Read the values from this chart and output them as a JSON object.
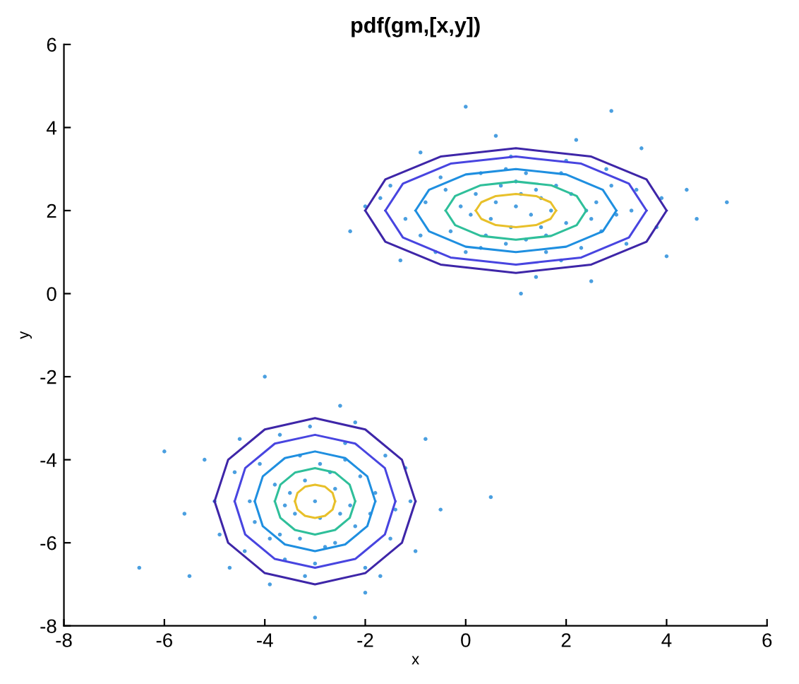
{
  "chart_data": {
    "type": "scatter",
    "title": "pdf(gm,[x,y])",
    "xlabel": "x",
    "ylabel": "y",
    "xlim": [
      -8,
      6
    ],
    "xticks": [
      -8,
      -6,
      -4,
      -2,
      0,
      2,
      4,
      6
    ],
    "ylim": [
      -8,
      6
    ],
    "yticks": [
      -8,
      -6,
      -4,
      -2,
      0,
      2,
      4,
      6
    ],
    "grid": false,
    "legend": false,
    "series": [
      {
        "color": "#4a9fe0",
        "marker": "circle",
        "x": [
          1.0,
          0.5,
          1.5,
          2.0,
          0.2,
          1.8,
          -0.3,
          2.6,
          0.8,
          1.2,
          -0.8,
          3.0,
          1.6,
          0.3,
          2.3,
          -1.2,
          3.4,
          0.9,
          1.9,
          -0.5,
          2.8,
          0.0,
          3.8,
          -1.5,
          4.4,
          5.2,
          2.9,
          0.0,
          -1.3,
          1.4,
          2.2,
          -2.0,
          4.0,
          0.6,
          -0.9,
          3.5,
          1.1,
          -2.3,
          4.6,
          2.5,
          1.3,
          0.7,
          1.7,
          2.1,
          0.4,
          -0.1,
          2.7,
          1.0,
          3.2,
          -0.6,
          0.9,
          1.4,
          0.1,
          2.4,
          1.9,
          0.6,
          1.2,
          -0.4,
          2.9,
          1.6,
          0.3,
          3.3,
          -0.9,
          2.0,
          1.1,
          0.8,
          2.5,
          1.5,
          -1.7,
          3.9,
          -3.0,
          -2.6,
          -3.4,
          -2.2,
          -3.8,
          -2.8,
          -3.3,
          -1.8,
          -4.2,
          -2.4,
          -3.6,
          -1.5,
          -4.6,
          -2.0,
          -3.1,
          -4.9,
          -1.2,
          -3.9,
          -2.5,
          -5.2,
          -1.0,
          -4.0,
          0.5,
          -6.0,
          -3.0,
          -6.5,
          -5.5,
          -0.8,
          -2.9,
          -3.5,
          -2.3,
          -3.7,
          -2.7,
          -4.4,
          -1.6,
          -3.2,
          -4.5,
          -0.5,
          -2.0,
          -5.0,
          -3.2,
          -2.5,
          -3.6,
          -2.9,
          -2.1,
          -3.9,
          -2.6,
          -4.1,
          -1.9,
          -3.3,
          -4.3,
          -2.4,
          -1.4,
          -3.0,
          -4.7,
          -1.7,
          -3.7,
          -2.2,
          -5.6,
          -1.1
        ],
        "values": [
          2.1,
          1.8,
          2.3,
          1.7,
          2.4,
          2.6,
          1.5,
          2.2,
          1.2,
          2.9,
          2.2,
          1.9,
          1.4,
          2.9,
          1.1,
          1.8,
          2.5,
          3.3,
          0.8,
          2.8,
          3.0,
          1.0,
          1.6,
          2.6,
          2.5,
          2.2,
          4.4,
          4.5,
          0.8,
          0.4,
          3.7,
          2.1,
          0.9,
          3.8,
          3.4,
          3.5,
          0.0,
          1.5,
          1.8,
          0.3,
          1.9,
          2.6,
          2.0,
          2.4,
          1.4,
          2.1,
          1.5,
          2.7,
          1.2,
          1.0,
          1.6,
          2.5,
          1.9,
          2.0,
          2.9,
          2.2,
          1.3,
          2.5,
          2.6,
          1.0,
          1.1,
          2.0,
          1.4,
          3.2,
          2.4,
          3.0,
          1.8,
          1.6,
          2.3,
          2.3,
          -5.0,
          -4.7,
          -5.3,
          -5.6,
          -4.6,
          -6.1,
          -3.9,
          -4.8,
          -5.5,
          -3.6,
          -6.4,
          -5.9,
          -4.3,
          -6.6,
          -3.2,
          -5.8,
          -4.2,
          -7.0,
          -2.7,
          -4.0,
          -6.2,
          -2.0,
          -4.9,
          -3.8,
          -7.8,
          -6.6,
          -6.8,
          -3.5,
          -5.4,
          -4.8,
          -5.1,
          -5.8,
          -4.3,
          -6.2,
          -3.9,
          -6.8,
          -3.5,
          -5.2,
          -7.2,
          -5.0,
          -4.5,
          -5.3,
          -5.1,
          -4.1,
          -4.4,
          -5.9,
          -6.0,
          -4.1,
          -5.3,
          -5.9,
          -5.0,
          -4.0,
          -5.2,
          -6.5,
          -6.6,
          -6.8,
          -3.4,
          -3.1,
          -5.3,
          -5.0
        ]
      },
      {
        "type": "line",
        "color": "#3e26a8",
        "marker": "none",
        "line_style": "solid",
        "x": [
          -2,
          -1.6,
          -0.5,
          1,
          2.5,
          3.6,
          4
        ],
        "values": [
          2,
          2.75,
          3.3,
          3.5,
          3.3,
          2.75,
          2
        ]
      },
      {
        "type": "line",
        "color": "#3e26a8",
        "marker": "none",
        "line_style": "solid",
        "x": [
          -2,
          -1.6,
          -0.5,
          1,
          2.5,
          3.6,
          4
        ],
        "values": [
          2,
          1.25,
          0.7,
          0.5,
          0.7,
          1.25,
          2
        ]
      },
      {
        "type": "line",
        "color": "#4845e0",
        "marker": "none",
        "line_style": "solid",
        "x": [
          -1.6,
          -1.25,
          -0.3,
          1,
          2.3,
          3.25,
          3.6
        ],
        "values": [
          2,
          2.65,
          3.13,
          3.3,
          3.13,
          2.65,
          2
        ]
      },
      {
        "type": "line",
        "color": "#4845e0",
        "marker": "none",
        "line_style": "solid",
        "x": [
          -1.6,
          -1.25,
          -0.3,
          1,
          2.3,
          3.25,
          3.6
        ],
        "values": [
          2,
          1.35,
          0.87,
          0.7,
          0.87,
          1.35,
          2
        ]
      },
      {
        "type": "line",
        "color": "#1f8fe0",
        "marker": "none",
        "line_style": "solid",
        "x": [
          -1,
          -0.73,
          0,
          1,
          2,
          2.73,
          3
        ],
        "values": [
          2,
          2.5,
          2.87,
          3,
          2.87,
          2.5,
          2
        ]
      },
      {
        "type": "line",
        "color": "#1f8fe0",
        "marker": "none",
        "line_style": "solid",
        "x": [
          -1,
          -0.73,
          0,
          1,
          2,
          2.73,
          3
        ],
        "values": [
          2,
          1.5,
          1.13,
          1,
          1.13,
          1.5,
          2
        ]
      },
      {
        "type": "line",
        "color": "#2fbf9a",
        "marker": "none",
        "line_style": "solid",
        "x": [
          -0.4,
          -0.21,
          0.3,
          1,
          1.7,
          2.21,
          2.4
        ],
        "values": [
          2,
          2.35,
          2.61,
          2.7,
          2.61,
          2.35,
          2
        ]
      },
      {
        "type": "line",
        "color": "#2fbf9a",
        "marker": "none",
        "line_style": "solid",
        "x": [
          -0.4,
          -0.21,
          0.3,
          1,
          1.7,
          2.21,
          2.4
        ],
        "values": [
          2,
          1.65,
          1.39,
          1.3,
          1.39,
          1.65,
          2
        ]
      },
      {
        "type": "line",
        "color": "#e8c02a",
        "marker": "none",
        "line_style": "solid",
        "x": [
          0.2,
          0.31,
          0.6,
          1,
          1.4,
          1.69,
          1.8
        ],
        "values": [
          2,
          2.2,
          2.35,
          2.4,
          2.35,
          2.2,
          2
        ]
      },
      {
        "type": "line",
        "color": "#e8c02a",
        "marker": "none",
        "line_style": "solid",
        "x": [
          0.2,
          0.31,
          0.6,
          1,
          1.4,
          1.69,
          1.8
        ],
        "values": [
          2,
          1.8,
          1.65,
          1.6,
          1.65,
          1.8,
          2
        ]
      },
      {
        "type": "line",
        "color": "#3e26a8",
        "marker": "none",
        "line_style": "solid",
        "x": [
          -5,
          -4.73,
          -4,
          -3,
          -2,
          -1.27,
          -1
        ],
        "values": [
          -5,
          -4,
          -3.27,
          -3,
          -3.27,
          -4,
          -5
        ]
      },
      {
        "type": "line",
        "color": "#3e26a8",
        "marker": "none",
        "line_style": "solid",
        "x": [
          -5,
          -4.73,
          -4,
          -3,
          -2,
          -1.27,
          -1
        ],
        "values": [
          -5,
          -6,
          -6.73,
          -7,
          -6.73,
          -6,
          -5
        ]
      },
      {
        "type": "line",
        "color": "#4845e0",
        "marker": "none",
        "line_style": "solid",
        "x": [
          -4.6,
          -4.39,
          -3.8,
          -3,
          -2.2,
          -1.61,
          -1.4
        ],
        "values": [
          -5,
          -4.2,
          -3.61,
          -3.4,
          -3.61,
          -4.2,
          -5
        ]
      },
      {
        "type": "line",
        "color": "#4845e0",
        "marker": "none",
        "line_style": "solid",
        "x": [
          -4.6,
          -4.39,
          -3.8,
          -3,
          -2.2,
          -1.61,
          -1.4
        ],
        "values": [
          -5,
          -5.8,
          -6.39,
          -6.6,
          -6.39,
          -5.8,
          -5
        ]
      },
      {
        "type": "line",
        "color": "#1f8fe0",
        "marker": "none",
        "line_style": "solid",
        "x": [
          -4.2,
          -4.04,
          -3.6,
          -3,
          -2.4,
          -1.96,
          -1.8
        ],
        "values": [
          -5,
          -4.4,
          -3.96,
          -3.8,
          -3.96,
          -4.4,
          -5
        ]
      },
      {
        "type": "line",
        "color": "#1f8fe0",
        "marker": "none",
        "line_style": "solid",
        "x": [
          -4.2,
          -4.04,
          -3.6,
          -3,
          -2.4,
          -1.96,
          -1.8
        ],
        "values": [
          -5,
          -5.6,
          -6.04,
          -6.2,
          -6.04,
          -5.6,
          -5
        ]
      },
      {
        "type": "line",
        "color": "#2fbf9a",
        "marker": "none",
        "line_style": "solid",
        "x": [
          -3.8,
          -3.69,
          -3.4,
          -3,
          -2.6,
          -2.31,
          -2.2
        ],
        "values": [
          -5,
          -4.6,
          -4.31,
          -4.2,
          -4.31,
          -4.6,
          -5
        ]
      },
      {
        "type": "line",
        "color": "#2fbf9a",
        "marker": "none",
        "line_style": "solid",
        "x": [
          -3.8,
          -3.69,
          -3.4,
          -3,
          -2.6,
          -2.31,
          -2.2
        ],
        "values": [
          -5,
          -5.4,
          -5.69,
          -5.8,
          -5.69,
          -5.4,
          -5
        ]
      },
      {
        "type": "line",
        "color": "#e8c02a",
        "marker": "none",
        "line_style": "solid",
        "x": [
          -3.4,
          -3.35,
          -3.2,
          -3,
          -2.8,
          -2.65,
          -2.6
        ],
        "values": [
          -5,
          -4.8,
          -4.65,
          -4.6,
          -4.65,
          -4.8,
          -5
        ]
      },
      {
        "type": "line",
        "color": "#e8c02a",
        "marker": "none",
        "line_style": "solid",
        "x": [
          -3.4,
          -3.35,
          -3.2,
          -3,
          -2.8,
          -2.65,
          -2.6
        ],
        "values": [
          -5,
          -5.2,
          -5.35,
          -5.4,
          -5.35,
          -5.2,
          -5
        ]
      }
    ]
  }
}
